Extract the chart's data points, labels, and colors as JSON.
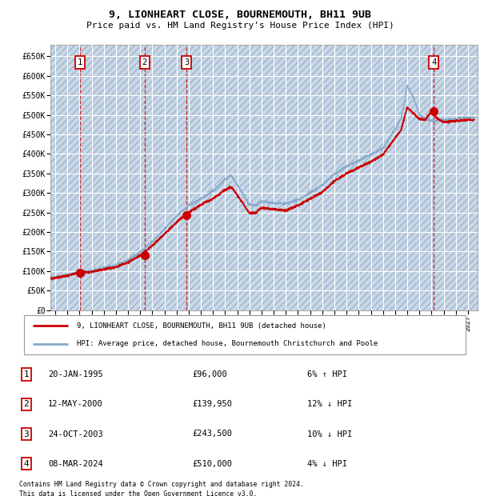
{
  "title1": "9, LIONHEART CLOSE, BOURNEMOUTH, BH11 9UB",
  "title2": "Price paid vs. HM Land Registry's House Price Index (HPI)",
  "ylabel_ticks": [
    "£0",
    "£50K",
    "£100K",
    "£150K",
    "£200K",
    "£250K",
    "£300K",
    "£350K",
    "£400K",
    "£450K",
    "£500K",
    "£550K",
    "£600K",
    "£650K"
  ],
  "ytick_vals": [
    0,
    50000,
    100000,
    150000,
    200000,
    250000,
    300000,
    350000,
    400000,
    450000,
    500000,
    550000,
    600000,
    650000
  ],
  "ylim": [
    0,
    680000
  ],
  "xlim_start": 1992.6,
  "xlim_end": 2027.8,
  "plot_bg_color": "#dce6f0",
  "hatch_facecolor": "#c8d8e8",
  "grid_color": "#ffffff",
  "red_line_color": "#cc0000",
  "blue_line_color": "#88aacc",
  "sale_marker_color": "#cc0000",
  "sale_marker_size": 7,
  "vline_color": "#cc0000",
  "purchases": [
    {
      "num": 1,
      "date_x": 1995.05,
      "price": 96000,
      "label": "20-JAN-1995",
      "price_str": "£96,000",
      "pct": "6% ↑ HPI"
    },
    {
      "num": 2,
      "date_x": 2000.37,
      "price": 139950,
      "label": "12-MAY-2000",
      "price_str": "£139,950",
      "pct": "12% ↓ HPI"
    },
    {
      "num": 3,
      "date_x": 2003.82,
      "price": 243500,
      "label": "24-OCT-2003",
      "price_str": "£243,500",
      "pct": "10% ↓ HPI"
    },
    {
      "num": 4,
      "date_x": 2024.18,
      "price": 510000,
      "label": "08-MAR-2024",
      "price_str": "£510,000",
      "pct": "4% ↓ HPI"
    }
  ],
  "legend_red_label": "9, LIONHEART CLOSE, BOURNEMOUTH, BH11 9UB (detached house)",
  "legend_blue_label": "HPI: Average price, detached house, Bournemouth Christchurch and Poole",
  "footer1": "Contains HM Land Registry data © Crown copyright and database right 2024.",
  "footer2": "This data is licensed under the Open Government Licence v3.0.",
  "hpi_ctrl_x": [
    1992.5,
    1993,
    1994,
    1995,
    1996,
    1997,
    1998,
    1999,
    2000,
    2001,
    2002,
    2003,
    2004,
    2005,
    2006,
    2007,
    2007.5,
    2008,
    2009,
    2009.5,
    2010,
    2011,
    2012,
    2013,
    2014,
    2015,
    2016,
    2017,
    2018,
    2019,
    2020,
    2021,
    2021.5,
    2022,
    2022.5,
    2023,
    2023.5,
    2024,
    2025,
    2026,
    2027
  ],
  "hpi_ctrl_y": [
    83000,
    85000,
    90000,
    96000,
    100000,
    108000,
    115000,
    128000,
    148000,
    175000,
    208000,
    240000,
    268000,
    285000,
    305000,
    335000,
    345000,
    320000,
    270000,
    268000,
    278000,
    274000,
    272000,
    282000,
    300000,
    320000,
    348000,
    368000,
    382000,
    398000,
    415000,
    462000,
    490000,
    575000,
    545000,
    500000,
    490000,
    485000,
    487000,
    490000,
    493000
  ],
  "red_ctrl_x": [
    1992.5,
    1993,
    1994,
    1995,
    1996,
    1997,
    1998,
    1999,
    2000,
    2001,
    2002,
    2003,
    2004,
    2005,
    2006,
    2007,
    2007.5,
    2008,
    2009,
    2009.5,
    2010,
    2011,
    2012,
    2013,
    2014,
    2015,
    2016,
    2017,
    2018,
    2019,
    2020,
    2021,
    2021.5,
    2022,
    2022.3,
    2023,
    2023.5,
    2024,
    2024.5,
    2025,
    2026,
    2027
  ],
  "red_ctrl_y": [
    80000,
    82000,
    88000,
    96000,
    98000,
    104000,
    110000,
    122000,
    140000,
    165000,
    195000,
    225000,
    250000,
    270000,
    285000,
    308000,
    315000,
    295000,
    248000,
    248000,
    262000,
    258000,
    255000,
    268000,
    285000,
    302000,
    330000,
    350000,
    365000,
    380000,
    398000,
    440000,
    462000,
    520000,
    510000,
    490000,
    488000,
    510000,
    490000,
    482000,
    484000,
    487000
  ]
}
